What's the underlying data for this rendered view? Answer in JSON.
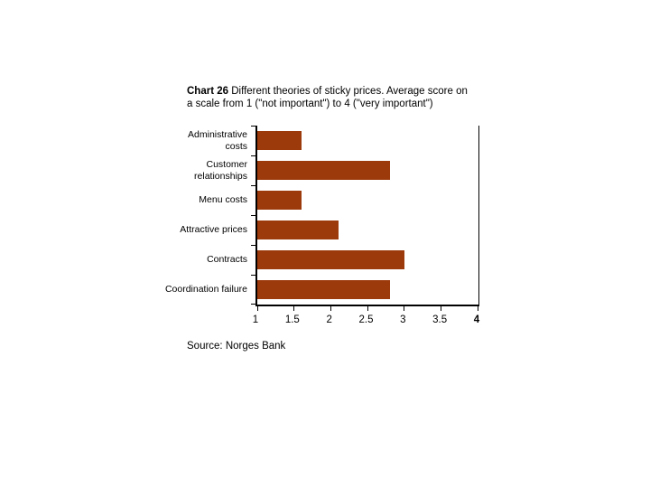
{
  "slide": {
    "background": "#ffffff"
  },
  "header": {
    "title_bold": "Chart 26",
    "title_line1_rest": " Different theories of sticky prices. Average score on",
    "title_line2": "a scale from 1 (\"not important\") to 4 (\"very important\")"
  },
  "source_note": "Source: Norges Bank",
  "chart_data": {
    "type": "bar",
    "orientation": "horizontal",
    "title": "Chart 26 Different theories of sticky prices. Average score on a scale from 1 (\"not important\") to 4 (\"very important\")",
    "categories": [
      "Administrative costs",
      "Customer relationships",
      "Menu costs",
      "Attractive prices",
      "Contracts",
      "Coordination failure"
    ],
    "values": [
      1.6,
      2.8,
      1.6,
      2.1,
      3.0,
      2.8
    ],
    "xlim": [
      1,
      4
    ],
    "xtick_values": [
      1,
      1.5,
      2,
      2.5,
      3,
      3.5,
      4
    ],
    "xtick_labels": [
      "1",
      "1.5",
      "2",
      "2.5",
      "3",
      "3.5",
      "4"
    ],
    "bold_last_xtick": true,
    "bar_color": "#9c3a0c",
    "axis_color": "#000000",
    "grid": false,
    "legend": false,
    "source": "Source: Norges Bank"
  }
}
